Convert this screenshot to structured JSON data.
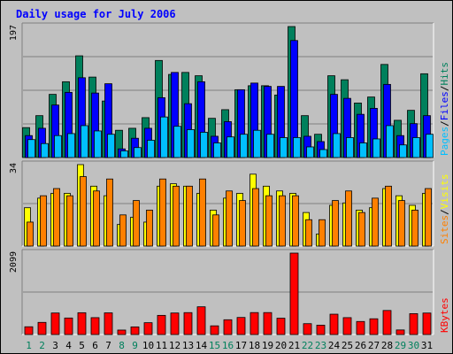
{
  "chart_data": {
    "type": "bar",
    "title": "Daily usage for July 2006",
    "categories": [
      "1",
      "2",
      "3",
      "4",
      "5",
      "6",
      "7",
      "8",
      "9",
      "10",
      "11",
      "12",
      "13",
      "14",
      "15",
      "16",
      "17",
      "18",
      "19",
      "20",
      "21",
      "22",
      "23",
      "24",
      "25",
      "26",
      "27",
      "28",
      "29",
      "30",
      "31"
    ],
    "weekend_days": [
      "1",
      "2",
      "8",
      "9",
      "15",
      "16",
      "22",
      "23",
      "29",
      "30"
    ],
    "panels": [
      {
        "id": "hits-files-pages",
        "ymax_label": "197",
        "ylim": [
          0,
          197
        ],
        "series": [
          {
            "name": "Hits",
            "color": "#00805c",
            "values": [
              45,
              63,
              95,
              114,
              153,
              121,
              85,
              41,
              44,
              60,
              146,
              125,
              128,
              123,
              59,
              72,
              102,
              108,
              108,
              94,
              197,
              63,
              35,
              123,
              117,
              82,
              91,
              140,
              56,
              71,
              126
            ]
          },
          {
            "name": "Files",
            "color": "#0000ff",
            "values": [
              33,
              44,
              79,
              98,
              120,
              97,
              111,
              13,
              29,
              44,
              90,
              128,
              81,
              114,
              32,
              54,
              102,
              112,
              107,
              107,
              176,
              32,
              24,
              95,
              89,
              65,
              74,
              110,
              33,
              51,
              63
            ]
          },
          {
            "name": "Pages",
            "color": "#00bfff",
            "values": [
              27,
              21,
              33,
              36,
              48,
              40,
              35,
              10,
              15,
              26,
              61,
              47,
              42,
              38,
              22,
              31,
              35,
              41,
              35,
              30,
              30,
              16,
              12,
              36,
              30,
              22,
              28,
              48,
              19,
              30,
              35
            ]
          }
        ],
        "legend": [
          {
            "text": "Pages",
            "color": "#00bfff"
          },
          {
            "text": "Files",
            "color": "#0000ff"
          },
          {
            "text": "Hits",
            "color": "#00805c"
          }
        ],
        "separator": "/"
      },
      {
        "id": "visits-sites",
        "ymax_label": "34",
        "ylim": [
          0,
          34
        ],
        "series": [
          {
            "name": "Visits",
            "color": "#ffff00",
            "values": [
              16,
              20,
              22,
              22,
              34,
              25,
              21,
              9,
              12,
              10,
              25,
              26,
              25,
              22,
              15,
              20,
              22,
              30,
              25,
              23,
              22,
              14,
              5,
              17,
              18,
              15,
              16,
              24,
              21,
              17,
              22
            ]
          },
          {
            "name": "Sites",
            "color": "#ff8000",
            "values": [
              10,
              21,
              24,
              21,
              29,
              23,
              28,
              13,
              19,
              15,
              28,
              25,
              25,
              28,
              13,
              23,
              19,
              24,
              21,
              21,
              21,
              11,
              11,
              19,
              23,
              14,
              20,
              25,
              19,
              15,
              24
            ]
          }
        ],
        "legend": [
          {
            "text": "Sites",
            "color": "#ff8000"
          },
          {
            "text": "Visits",
            "color": "#ffff00"
          }
        ],
        "separator": "/"
      },
      {
        "id": "kbytes",
        "ymax_label": "2099",
        "ylim": [
          0,
          2099
        ],
        "series": [
          {
            "name": "KBytes",
            "color": "#ff0000",
            "values": [
              200,
              313,
              555,
              426,
              562,
              435,
              559,
              115,
              197,
              305,
              494,
              555,
              565,
              715,
              224,
              381,
              440,
              566,
              566,
              421,
              2099,
              280,
              241,
              524,
              435,
              336,
              406,
              620,
              118,
              538,
              554
            ]
          }
        ],
        "legend": [
          {
            "text": "KBytes",
            "color": "#ff0000"
          }
        ],
        "separator": ""
      }
    ],
    "day_label_colors": {
      "weekday": "#000000",
      "weekend": "#00805c"
    },
    "grid": true
  }
}
